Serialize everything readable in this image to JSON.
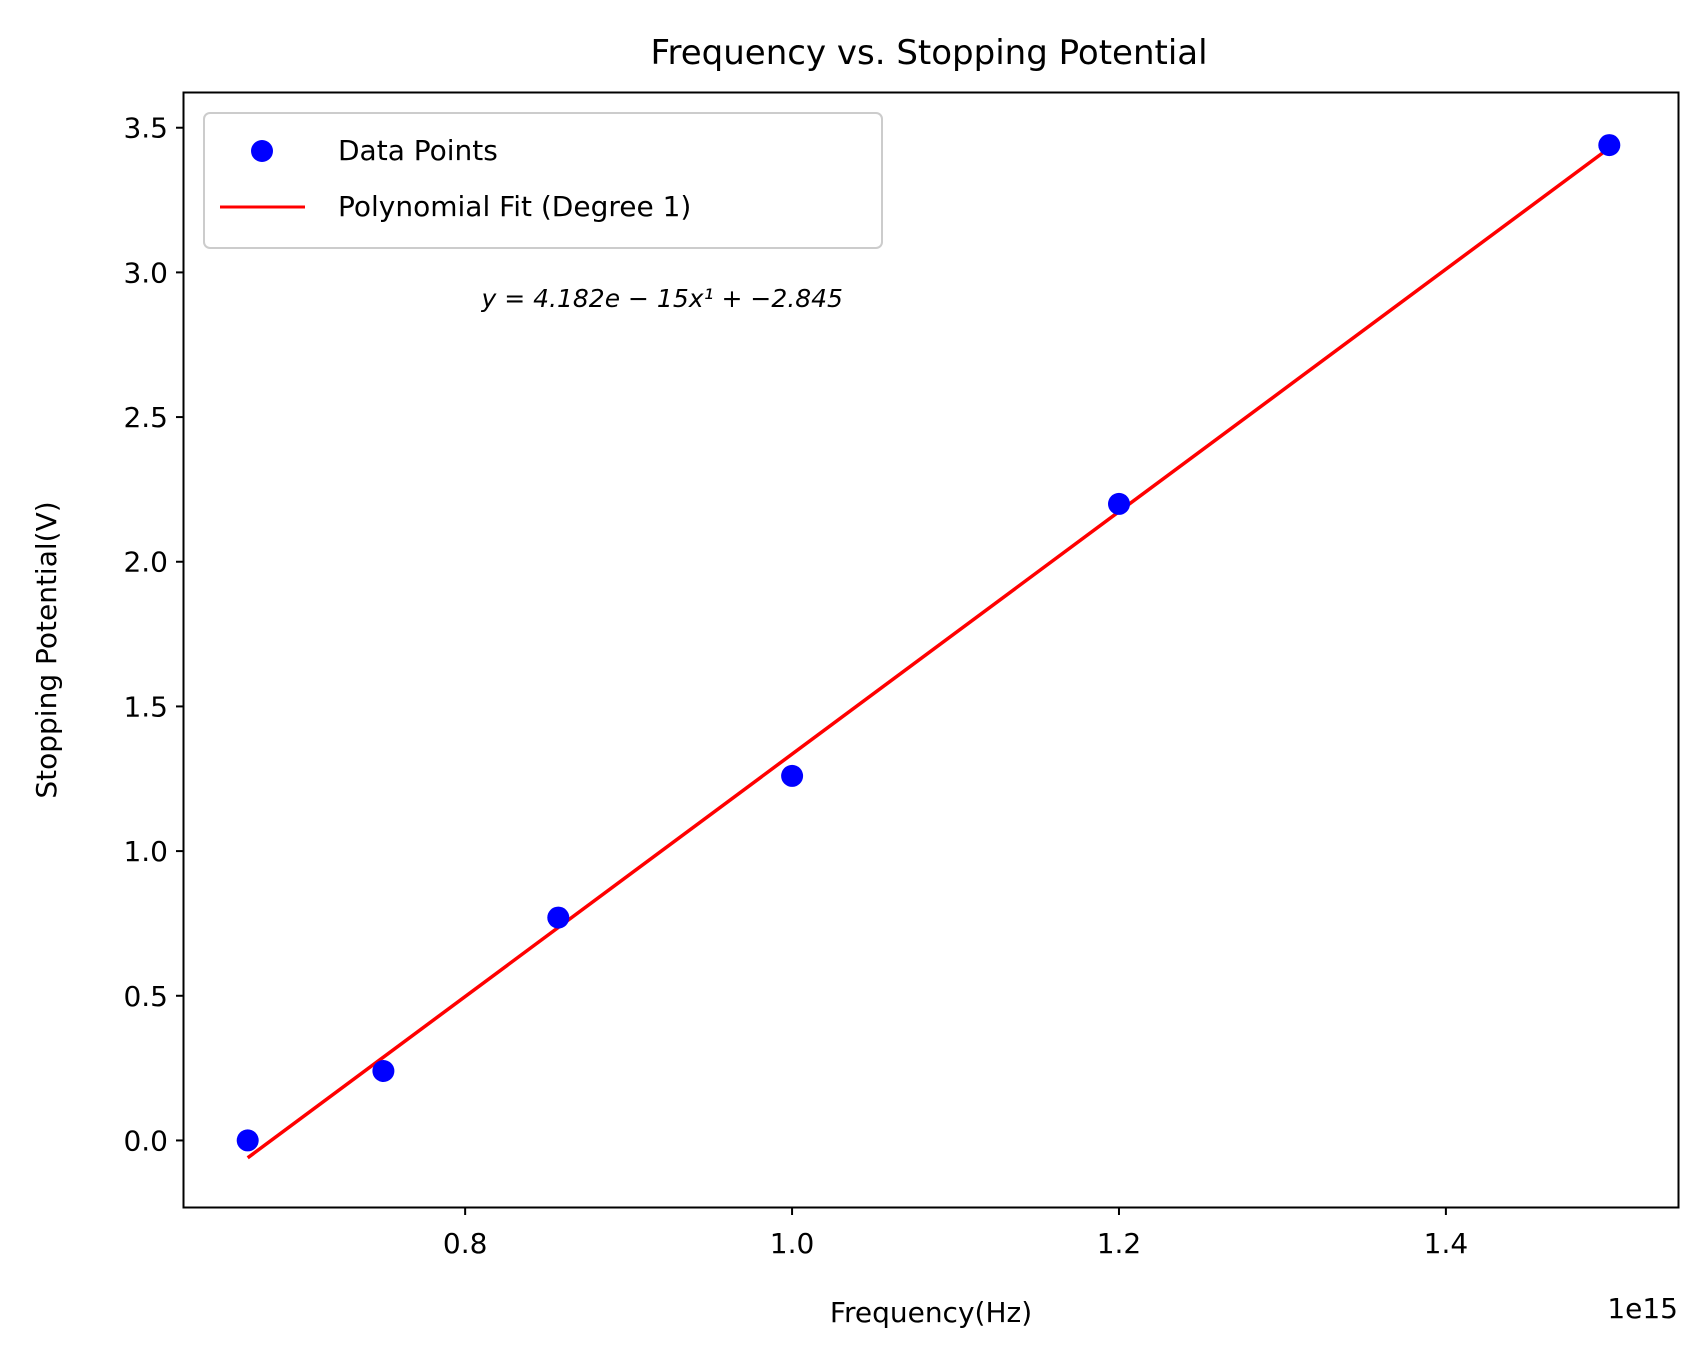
{
  "chart_data": {
    "type": "scatter",
    "title": "Frequency vs. Stopping Potential",
    "xlabel": "Frequency(Hz)",
    "ylabel": "Stopping Potential(V)",
    "x_offset_label": "1e15",
    "xlim": [
      0.628,
      1.542
    ],
    "ylim": [
      -0.23,
      3.62
    ],
    "x_ticks": [
      0.8,
      1.0,
      1.2,
      1.4
    ],
    "x_tick_labels": [
      "0.8",
      "1.0",
      "1.2",
      "1.4"
    ],
    "y_ticks": [
      0.0,
      0.5,
      1.0,
      1.5,
      2.0,
      2.5,
      3.0,
      3.5
    ],
    "y_tick_labels": [
      "0.0",
      "0.5",
      "1.0",
      "1.5",
      "2.0",
      "2.5",
      "3.0",
      "3.5"
    ],
    "grid": false,
    "legend_position": "upper-left",
    "series": [
      {
        "name": "Data Points",
        "kind": "scatter",
        "color": "#0000ff",
        "x": [
          0.667,
          0.75,
          0.857,
          1.0,
          1.2,
          1.5
        ],
        "y": [
          0.0,
          0.24,
          0.77,
          1.26,
          2.2,
          3.44
        ]
      },
      {
        "name": "Polynomial Fit (Degree 1)",
        "kind": "line",
        "color": "#ff0000",
        "x": [
          0.667,
          1.5
        ],
        "y": [
          -0.06,
          3.43
        ]
      }
    ],
    "annotation": {
      "text": "y = 4.182e − 15x¹ + −2.845",
      "x": 0.81,
      "y": 2.88
    }
  }
}
